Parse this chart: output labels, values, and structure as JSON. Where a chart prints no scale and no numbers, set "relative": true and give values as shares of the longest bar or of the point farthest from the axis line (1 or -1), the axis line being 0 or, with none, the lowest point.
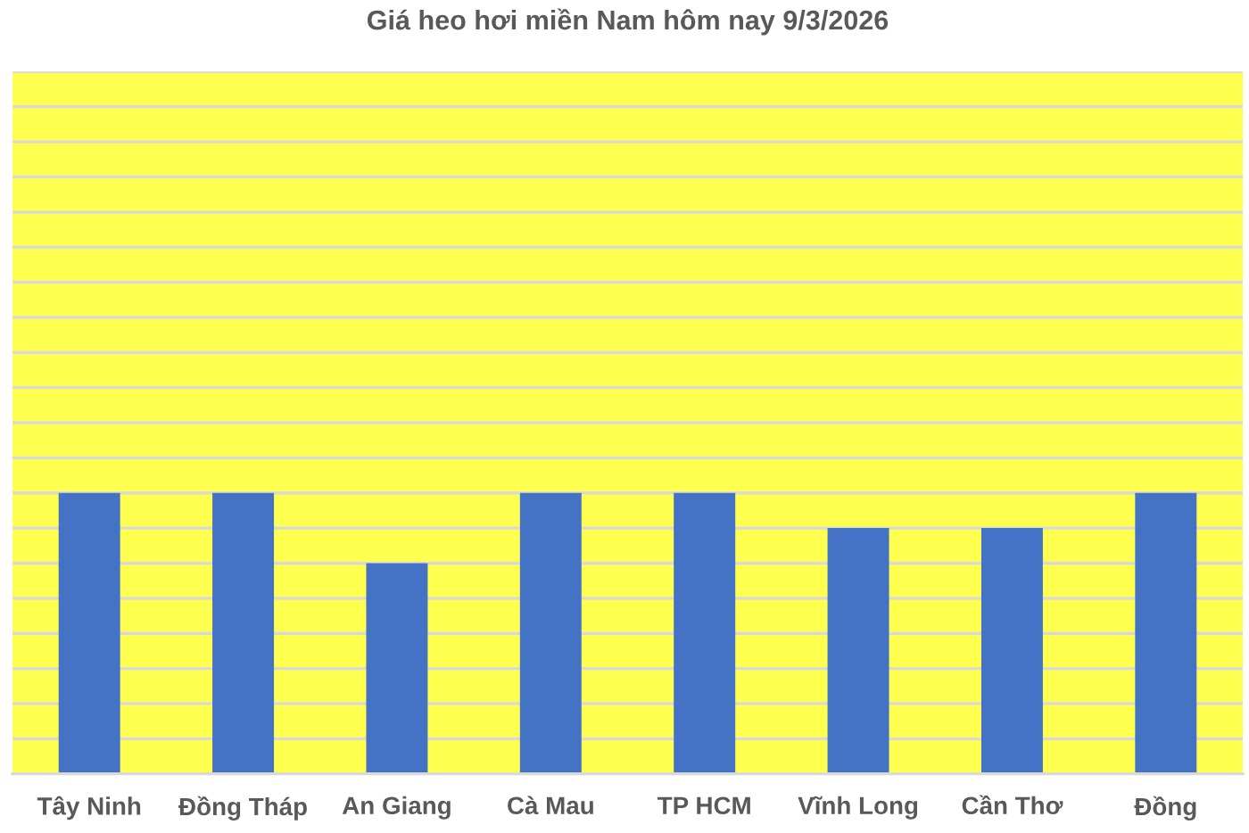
{
  "chart_data": {
    "type": "bar",
    "title": "Giá heo hơi miền Nam hôm nay 9/3/2026",
    "categories": [
      "Tây Ninh",
      "Đồng Tháp",
      "An Giang",
      "Cà Mau",
      "TP HCM",
      "Vĩnh Long",
      "Cần Thơ",
      "Đồng"
    ],
    "values": [
      1,
      1,
      0.75,
      1,
      1,
      0.875,
      0.875,
      1
    ],
    "color": "#4472c4",
    "relative": true,
    "grid": "y"
  }
}
